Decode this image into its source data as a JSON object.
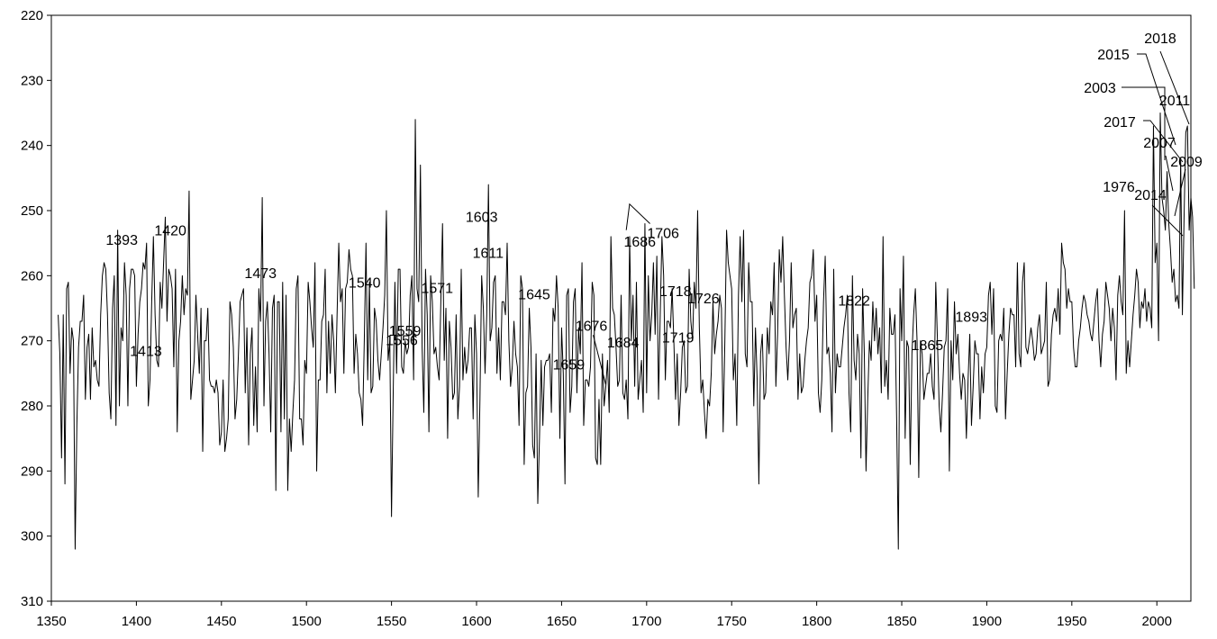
{
  "chart_data": {
    "type": "line",
    "title": "",
    "xlabel": "",
    "ylabel": "",
    "xlim": [
      1350,
      2020
    ],
    "ylim": [
      220,
      310
    ],
    "y_inverted": true,
    "grid": false,
    "legend": "none",
    "line_color": "#000000",
    "x_ticks": [
      1350,
      1400,
      1450,
      1500,
      1550,
      1600,
      1650,
      1700,
      1750,
      1800,
      1850,
      1900,
      1950,
      2000
    ],
    "y_ticks": [
      220,
      230,
      240,
      250,
      260,
      270,
      280,
      290,
      300,
      310
    ],
    "series": [
      {
        "x_start": 1354,
        "x_step": 1,
        "values": [
          266,
          272,
          288,
          266,
          292,
          262,
          261,
          275,
          268,
          270,
          302,
          283,
          271,
          267,
          267,
          263,
          279,
          271,
          269,
          279,
          268,
          274,
          273,
          276,
          277,
          266,
          260,
          258,
          259,
          266,
          278,
          282,
          265,
          260,
          283,
          253,
          280,
          268,
          270,
          258,
          263,
          280,
          262,
          259,
          259,
          260,
          277,
          269,
          264,
          262,
          258,
          259,
          255,
          280,
          276,
          264,
          254,
          266,
          273,
          274,
          261,
          265,
          258,
          251,
          267,
          259,
          260,
          262,
          274,
          259,
          284,
          270,
          267,
          260,
          266,
          262,
          263,
          247,
          279,
          276,
          273,
          263,
          269,
          275,
          265,
          287,
          270,
          270,
          265,
          276,
          277,
          277,
          278,
          276,
          278,
          286,
          284,
          276,
          287,
          285,
          282,
          264,
          266,
          271,
          282,
          279,
          272,
          264,
          263,
          262,
          278,
          268,
          286,
          272,
          268,
          283,
          274,
          284,
          262,
          267,
          248,
          280,
          267,
          264,
          272,
          284,
          265,
          263,
          293,
          264,
          264,
          284,
          261,
          282,
          263,
          293,
          282,
          287,
          281,
          276,
          262,
          260,
          282,
          282,
          286,
          273,
          275,
          261,
          264,
          268,
          271,
          258,
          290,
          276,
          276,
          267,
          266,
          259,
          278,
          267,
          275,
          266,
          270,
          278,
          266,
          255,
          264,
          262,
          275,
          262,
          261,
          256,
          259,
          260,
          275,
          269,
          272,
          278,
          279,
          283,
          270,
          255,
          276,
          261,
          278,
          277,
          265,
          267,
          273,
          276,
          272,
          268,
          263,
          250,
          273,
          270,
          297,
          278,
          261,
          275,
          259,
          259,
          274,
          275,
          270,
          272,
          271,
          263,
          260,
          276,
          236,
          262,
          264,
          243,
          271,
          281,
          259,
          266,
          284,
          260,
          264,
          272,
          271,
          274,
          276,
          264,
          252,
          273,
          265,
          285,
          267,
          271,
          279,
          278,
          266,
          282,
          277,
          259,
          276,
          271,
          275,
          273,
          268,
          268,
          282,
          266,
          272,
          294,
          279,
          260,
          265,
          275,
          266,
          246,
          270,
          268,
          261,
          260,
          275,
          268,
          276,
          264,
          264,
          266,
          255,
          270,
          277,
          274,
          267,
          272,
          274,
          283,
          260,
          262,
          289,
          278,
          277,
          265,
          271,
          286,
          288,
          272,
          295,
          285,
          273,
          283,
          274,
          273,
          273,
          272,
          281,
          265,
          267,
          260,
          265,
          285,
          268,
          275,
          292,
          263,
          262,
          281,
          277,
          264,
          262,
          278,
          268,
          272,
          258,
          283,
          276,
          276,
          277,
          274,
          261,
          263,
          288,
          289,
          279,
          289,
          272,
          280,
          277,
          273,
          281,
          254,
          265,
          266,
          271,
          277,
          276,
          263,
          278,
          279,
          276,
          282,
          254,
          270,
          263,
          277,
          261,
          279,
          276,
          273,
          281,
          252,
          278,
          260,
          270,
          266,
          258,
          269,
          257,
          279,
          266,
          254,
          260,
          276,
          267,
          267,
          268,
          262,
          270,
          279,
          272,
          283,
          278,
          271,
          270,
          278,
          277,
          259,
          267,
          270,
          261,
          265,
          250,
          268,
          278,
          276,
          281,
          285,
          279,
          280,
          275,
          264,
          272,
          269,
          267,
          263,
          265,
          284,
          270,
          253,
          258,
          260,
          262,
          276,
          272,
          283,
          263,
          254,
          264,
          253,
          272,
          274,
          258,
          264,
          264,
          280,
          268,
          276,
          292,
          272,
          269,
          279,
          278,
          268,
          272,
          264,
          266,
          258,
          277,
          269,
          256,
          261,
          254,
          263,
          271,
          276,
          270,
          258,
          268,
          266,
          265,
          279,
          272,
          278,
          277,
          273,
          270,
          268,
          261,
          260,
          256,
          267,
          263,
          278,
          281,
          276,
          264,
          257,
          272,
          271,
          275,
          284,
          259,
          278,
          272,
          274,
          274,
          271,
          268,
          266,
          263,
          278,
          284,
          260,
          273,
          276,
          269,
          272,
          288,
          262,
          272,
          290,
          279,
          270,
          273,
          264,
          270,
          265,
          272,
          268,
          278,
          254,
          277,
          273,
          279,
          265,
          269,
          269,
          266,
          282,
          302,
          262,
          270,
          257,
          285,
          270,
          271,
          289,
          272,
          266,
          262,
          270,
          291,
          270,
          272,
          279,
          277,
          275,
          275,
          272,
          277,
          279,
          261,
          270,
          280,
          284,
          278,
          271,
          270,
          262,
          290,
          270,
          276,
          264,
          272,
          269,
          275,
          279,
          275,
          276,
          285,
          276,
          269,
          283,
          277,
          270,
          272,
          272,
          282,
          274,
          278,
          272,
          271,
          263,
          261,
          269,
          262,
          280,
          281,
          270,
          269,
          270,
          265,
          282,
          275,
          269,
          265,
          266,
          266,
          274,
          258,
          272,
          274,
          261,
          258,
          271,
          272,
          270,
          268,
          270,
          273,
          272,
          268,
          266,
          272,
          271,
          270,
          261,
          277,
          276,
          269,
          266,
          265,
          267,
          262,
          269,
          255,
          258,
          259,
          265,
          262,
          264,
          264,
          271,
          274,
          274,
          270,
          268,
          265,
          263,
          264,
          266,
          267,
          269,
          270,
          267,
          264,
          262,
          270,
          274,
          269,
          267,
          261,
          263,
          265,
          270,
          265,
          268,
          276,
          263,
          260,
          264,
          266,
          250,
          275,
          270,
          274,
          270,
          266,
          263,
          259,
          261,
          268,
          264,
          265,
          262,
          267,
          264,
          265,
          268,
          237,
          258,
          255,
          270,
          235,
          248,
          250,
          253,
          244,
          252,
          256,
          261,
          259,
          264,
          263,
          265,
          242,
          266,
          251,
          238,
          237,
          253,
          248,
          251,
          262
        ]
      }
    ],
    "annotations": [
      {
        "label": "1393",
        "x": 1393,
        "y": 253
      },
      {
        "label": "1413",
        "x": 1413,
        "y": 254
      },
      {
        "label": "1420",
        "x": 1420,
        "y": 251
      },
      {
        "label": "1473",
        "x": 1473,
        "y": 248
      },
      {
        "label": "1540",
        "x": 1540,
        "y": 250
      },
      {
        "label": "1556",
        "x": 1556,
        "y": 236
      },
      {
        "label": "1559",
        "x": 1559,
        "y": 243
      },
      {
        "label": "1571",
        "x": 1571,
        "y": 252
      },
      {
        "label": "1603",
        "x": 1603,
        "y": 246
      },
      {
        "label": "1611",
        "x": 1611,
        "y": 253
      },
      {
        "label": "1645",
        "x": 1645,
        "y": 254
      },
      {
        "label": "1659",
        "x": 1659,
        "y": 252
      },
      {
        "label": "1676",
        "x": 1676,
        "y": 254
      },
      {
        "label": "1684",
        "x": 1684,
        "y": 253
      },
      {
        "label": "1686",
        "x": 1686,
        "y": 250
      },
      {
        "label": "1706",
        "x": 1706,
        "y": 250
      },
      {
        "label": "1718",
        "x": 1718,
        "y": 250
      },
      {
        "label": "1719",
        "x": 1719,
        "y": 241
      },
      {
        "label": "1726",
        "x": 1726,
        "y": 252
      },
      {
        "label": "1822",
        "x": 1822,
        "y": 246
      },
      {
        "label": "1865",
        "x": 1865,
        "y": 252
      },
      {
        "label": "1893",
        "x": 1893,
        "y": 240
      },
      {
        "label": "1976",
        "x": 1976,
        "y": 250
      },
      {
        "label": "2003",
        "x": 2003,
        "y": 237
      },
      {
        "label": "2007",
        "x": 2007,
        "y": 249
      },
      {
        "label": "2009",
        "x": 2009,
        "y": 250
      },
      {
        "label": "2011",
        "x": 2011,
        "y": 237
      },
      {
        "label": "2014",
        "x": 2014,
        "y": 254
      },
      {
        "label": "2015",
        "x": 2015,
        "y": 238
      },
      {
        "label": "2017",
        "x": 2017,
        "y": 248
      },
      {
        "label": "2018",
        "x": 2018,
        "y": 237
      }
    ]
  }
}
